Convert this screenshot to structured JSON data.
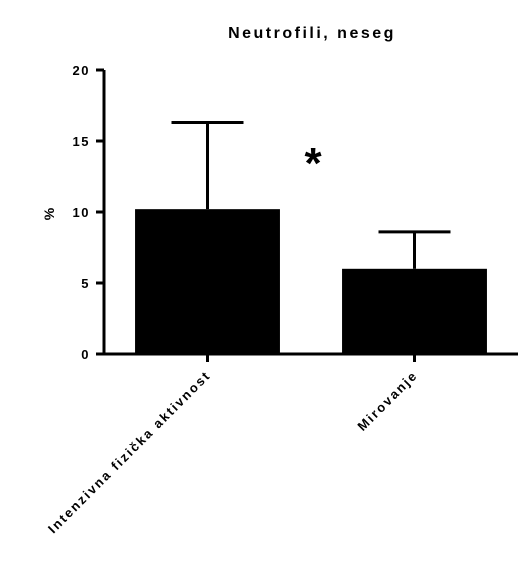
{
  "chart_data": {
    "type": "bar",
    "title": "Neutrofili, neseg",
    "xlabel": "",
    "ylabel": "%",
    "ylim": [
      0,
      20
    ],
    "yticks": [
      0,
      5,
      10,
      15,
      20
    ],
    "categories": [
      "Intenzivna fizička aktivnost",
      "Mirovanje"
    ],
    "values": [
      10.2,
      6.0
    ],
    "error_upper": [
      16.3,
      8.6
    ],
    "annotations": [
      {
        "text": "*",
        "category_gap": "between"
      }
    ],
    "grid": false,
    "legend": "none",
    "colors": {
      "bar": "#000000",
      "axis": "#000000"
    }
  }
}
